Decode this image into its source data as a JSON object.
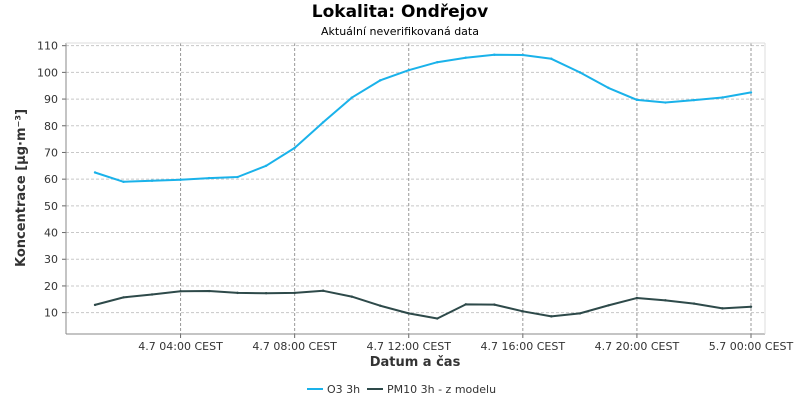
{
  "chart_data": {
    "type": "line",
    "title": "Lokalita: Ondřejov",
    "subtitle": "Aktuální neverifikovaná data",
    "xlabel": "Datum a čas",
    "ylabel": "Koncentrace [µg·m⁻³]",
    "x_ticks": [
      {
        "t": 3,
        "label": "4.7 04:00 CEST"
      },
      {
        "t": 7,
        "label": "4.7 08:00 CEST"
      },
      {
        "t": 11,
        "label": "4.7 12:00 CEST"
      },
      {
        "t": 15,
        "label": "4.7 16:00 CEST"
      },
      {
        "t": 19,
        "label": "4.7 20:00 CEST"
      },
      {
        "t": 23,
        "label": "5.7 00:00 CEST"
      }
    ],
    "xlim": [
      0,
      24
    ],
    "ylim": [
      2,
      111
    ],
    "y_ticks": [
      10,
      20,
      30,
      40,
      50,
      60,
      70,
      80,
      90,
      100,
      110
    ],
    "grid": true,
    "legend_position": "bottom",
    "series": [
      {
        "name": "O3 3h",
        "color": "#1ab2ea",
        "x": [
          0,
          1,
          2,
          3,
          4,
          5,
          6,
          7,
          8,
          9,
          10,
          11,
          12,
          13,
          14,
          15,
          16,
          17,
          18,
          19,
          20,
          21,
          22,
          23
        ],
        "values": [
          62.5,
          59.0,
          59.4,
          59.8,
          60.4,
          60.8,
          65.0,
          71.7,
          81.3,
          90.5,
          97.0,
          100.8,
          103.8,
          105.5,
          106.6,
          106.5,
          105.1,
          100.0,
          94.2,
          89.7,
          88.7,
          89.6,
          90.6,
          92.5
        ]
      },
      {
        "name": "PM10 3h - z modelu",
        "color": "#2e4a4a",
        "x": [
          0,
          1,
          2,
          3,
          4,
          5,
          6,
          7,
          8,
          9,
          10,
          11,
          12,
          13,
          14,
          15,
          16,
          17,
          18,
          19,
          20,
          21,
          22,
          23
        ],
        "values": [
          12.9,
          15.7,
          16.8,
          18.0,
          18.1,
          17.4,
          17.3,
          17.4,
          18.2,
          16.0,
          12.6,
          9.7,
          7.8,
          13.1,
          13.0,
          10.5,
          8.6,
          9.7,
          12.7,
          15.5,
          14.6,
          13.4,
          11.6,
          12.2
        ]
      }
    ]
  }
}
